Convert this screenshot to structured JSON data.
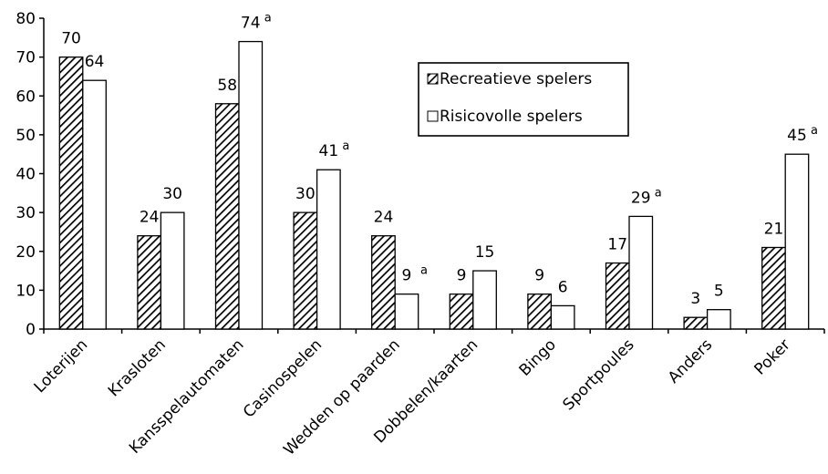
{
  "chart_data": {
    "type": "bar",
    "categories": [
      "Loterijen",
      "Krasloten",
      "Kansspelautomaten",
      "Casinospelen",
      "Wedden op paarden",
      "Dobbelen/kaarten",
      "Bingo",
      "Sportpoules",
      "Anders",
      "Poker"
    ],
    "series": [
      {
        "name": "Recreatieve spelers",
        "values": [
          70,
          24,
          58,
          30,
          24,
          9,
          9,
          17,
          3,
          21
        ],
        "annotations": [
          "",
          "",
          "",
          "",
          "",
          "",
          "",
          "",
          "",
          ""
        ],
        "pattern": "diagonal-hatch"
      },
      {
        "name": "Risicovolle spelers",
        "values": [
          64,
          30,
          74,
          41,
          9,
          15,
          6,
          29,
          5,
          45
        ],
        "annotations": [
          "",
          "",
          "a",
          "a",
          "a",
          "",
          "",
          "a",
          "",
          "a"
        ],
        "pattern": "white"
      }
    ],
    "ylim": [
      0,
      80
    ],
    "yticks": [
      0,
      10,
      20,
      30,
      40,
      50,
      60,
      70,
      80
    ],
    "grid": false,
    "legend_position": "top-right",
    "colors": {
      "axis": "#000000",
      "hatch": "#000000",
      "hatch_bg": "#ffffff",
      "bar_fill": "#ffffff"
    }
  }
}
